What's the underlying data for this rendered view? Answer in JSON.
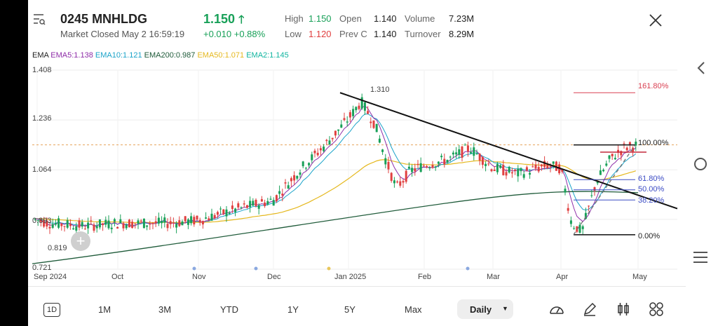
{
  "header": {
    "symbol": "0245",
    "name": "MNHLDG",
    "price": "1.150",
    "status": "Market Closed",
    "datetime": "May 2 16:59:19",
    "change": "+0.010",
    "change_pct": "+0.88%",
    "stats": [
      {
        "label": "High",
        "value": "1.150",
        "color": "#18a058"
      },
      {
        "label": "Open",
        "value": "1.140",
        "color": "#222222"
      },
      {
        "label": "Volume",
        "value": "7.23M",
        "color": "#222222"
      },
      {
        "label": "Low",
        "value": "1.120",
        "color": "#e04040"
      },
      {
        "label": "Prev C",
        "value": "1.140",
        "color": "#222222"
      },
      {
        "label": "Turnover",
        "value": "8.29M",
        "color": "#222222"
      }
    ]
  },
  "ema_legend": [
    {
      "text": "EMA",
      "color": "#222222"
    },
    {
      "text": "EMA5:1.138",
      "color": "#8e2da8"
    },
    {
      "text": "EMA10:1.121",
      "color": "#1aa3c9"
    },
    {
      "text": "EMA200:0.987",
      "color": "#1f5b3a"
    },
    {
      "text": "EMA50:1.071",
      "color": "#e5b81e"
    },
    {
      "text": "EMA2:1.145",
      "color": "#12b5a0"
    }
  ],
  "chart_data": {
    "type": "candlestick",
    "y_ticks": [
      "1.408",
      "1.236",
      "1.064",
      "0.893",
      "0.721"
    ],
    "x_ticks": [
      "Sep 2024",
      "Oct",
      "Nov",
      "Dec",
      "Jan 2025",
      "Feb",
      "Mar",
      "Apr",
      "May"
    ],
    "ylim": [
      0.721,
      1.408
    ],
    "annotations": [
      "1.310",
      "0.819"
    ],
    "fib_levels": [
      {
        "label": "161.80%",
        "value": 1.33,
        "color": "#d94052"
      },
      {
        "label": "100.00%",
        "value": 1.15,
        "color": "#222222"
      },
      {
        "label": "61.80%",
        "value": 1.03,
        "color": "#3b4bc4"
      },
      {
        "label": "50.00%",
        "value": 0.995,
        "color": "#3b4bc4"
      },
      {
        "label": "38.20%",
        "value": 0.96,
        "color": "#3b4bc4"
      },
      {
        "label": "0.00%",
        "value": 0.84,
        "color": "#222222"
      }
    ],
    "last_close_line": 1.15,
    "colors": {
      "up": "#18a058",
      "down": "#e04040"
    }
  },
  "toolbar": {
    "ranges": [
      "1D",
      "1M",
      "3M",
      "YTD",
      "1Y",
      "5Y",
      "Max"
    ],
    "interval": "Daily"
  },
  "icons": [
    "search-list-icon",
    "close-icon",
    "chevron-left-icon",
    "circle-icon",
    "menu-icon",
    "gauge-icon",
    "pen-icon",
    "candles-icon",
    "grid-icon",
    "plus-icon"
  ]
}
